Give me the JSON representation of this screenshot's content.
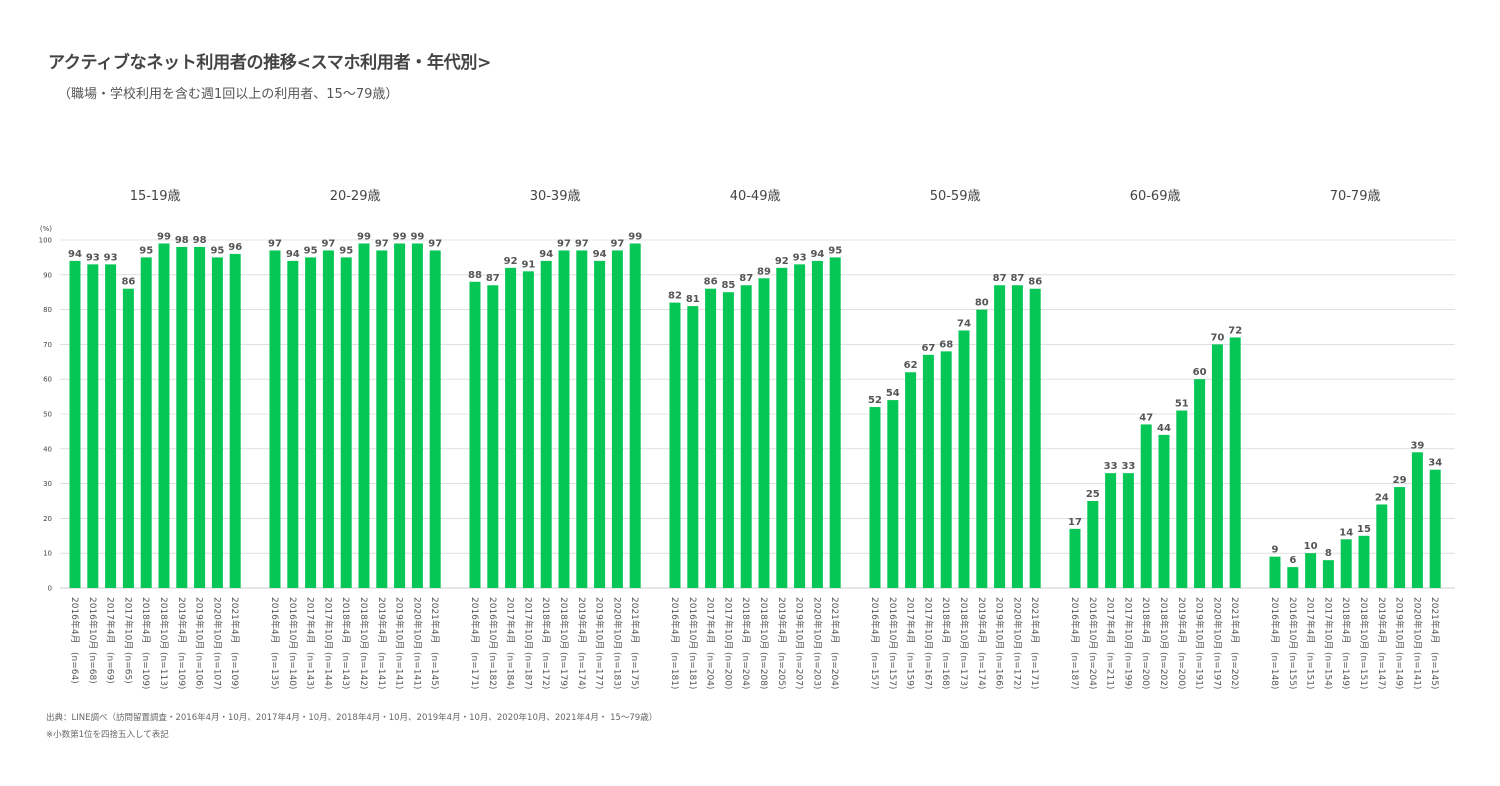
{
  "title": "アクティブなネット利用者の推移<スマホ利用者・年代別>",
  "subtitle": "（職場・学校利用を含む週1回以上の利用者、15〜79歳）",
  "source": "出典：LINE調べ（訪問留置調査・2016年4月・10月、2017年4月・10月、2018年4月・10月、2019年4月・10月、2020年10月、2021年4月・ 15〜79歳）",
  "note": "※小数第1位を四捨五入して表記",
  "colors": {
    "bar": "#06C755",
    "grid": "#cccccc"
  },
  "chart_data": {
    "type": "bar",
    "ylabel": "(%)",
    "ylim": [
      0,
      100
    ],
    "yticks": [
      0,
      10,
      20,
      30,
      40,
      50,
      60,
      70,
      80,
      90,
      100
    ],
    "grid": true,
    "categories": [
      "2016年4月",
      "2016年10月",
      "2017年4月",
      "2017年10月",
      "2018年4月",
      "2018年10月",
      "2019年4月",
      "2019年10月",
      "2020年10月",
      "2021年4月"
    ],
    "series": [
      {
        "name": "15-19歳",
        "values": [
          94,
          93,
          93,
          86,
          95,
          99,
          98,
          98,
          95,
          96
        ],
        "n": [
          "(n=64)",
          "(n=68)",
          "(n=69)",
          "(n=65)",
          "(n=109)",
          "(n=113)",
          "(n=109)",
          "(n=106)",
          "(n=107)",
          "(n=109)"
        ]
      },
      {
        "name": "20-29歳",
        "values": [
          97,
          94,
          95,
          97,
          95,
          99,
          97,
          99,
          99,
          97
        ],
        "n": [
          "(n=135)",
          "(n=140)",
          "(n=143)",
          "(n=144)",
          "(n=143)",
          "(n=142)",
          "(n=141)",
          "(n=141)",
          "(n=141)",
          "(n=145)"
        ]
      },
      {
        "name": "30-39歳",
        "values": [
          88,
          87,
          92,
          91,
          94,
          97,
          97,
          94,
          97,
          99
        ],
        "n": [
          "(n=171)",
          "(n=182)",
          "(n=184)",
          "(n=187)",
          "(n=172)",
          "(n=179)",
          "(n=174)",
          "(n=177)",
          "(n=183)",
          "(n=175)"
        ]
      },
      {
        "name": "40-49歳",
        "values": [
          82,
          81,
          86,
          85,
          87,
          89,
          92,
          93,
          94,
          95
        ],
        "n": [
          "(n=181)",
          "(n=181)",
          "(n=204)",
          "(n=200)",
          "(n=204)",
          "(n=208)",
          "(n=205)",
          "(n=207)",
          "(n=203)",
          "(n=204)"
        ]
      },
      {
        "name": "50-59歳",
        "values": [
          52,
          54,
          62,
          67,
          68,
          74,
          80,
          87,
          87,
          86
        ],
        "n": [
          "(n=157)",
          "(n=157)",
          "(n=159)",
          "(n=167)",
          "(n=168)",
          "(n=173)",
          "(n=174)",
          "(n=166)",
          "(n=172)",
          "(n=171)"
        ]
      },
      {
        "name": "60-69歳",
        "values": [
          17,
          25,
          33,
          33,
          47,
          44,
          51,
          60,
          70,
          72
        ],
        "n": [
          "(n=187)",
          "(n=204)",
          "(n=211)",
          "(n=199)",
          "(n=200)",
          "(n=202)",
          "(n=200)",
          "(n=191)",
          "(n=197)",
          "(n=202)"
        ]
      },
      {
        "name": "70-79歳",
        "values": [
          9,
          6,
          10,
          8,
          14,
          15,
          24,
          29,
          39,
          34
        ],
        "n": [
          "(n=148)",
          "(n=155)",
          "(n=151)",
          "(n=154)",
          "(n=149)",
          "(n=151)",
          "(n=147)",
          "(n=149)",
          "(n=141)",
          "(n=145)"
        ]
      }
    ]
  }
}
